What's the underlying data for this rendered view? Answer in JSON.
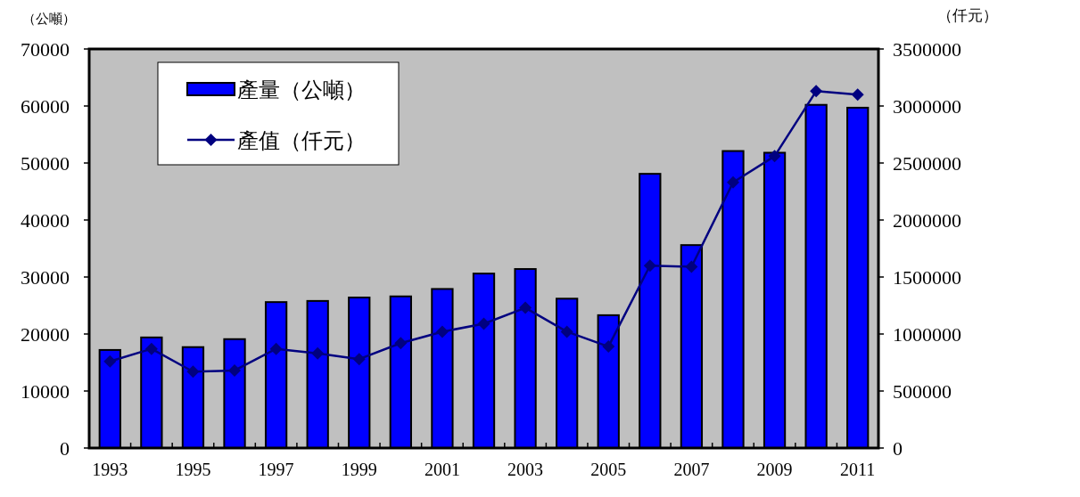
{
  "chart_data": {
    "type": "bar",
    "ylabel": "（公噸）",
    "y2label": "（仟元）",
    "categories": [
      "1993",
      null,
      "1995",
      null,
      "1997",
      null,
      "1999",
      null,
      "2001",
      null,
      "2003",
      null,
      "2005",
      null,
      "2007",
      null,
      "2009",
      null,
      "2011"
    ],
    "series": [
      {
        "name": "產量（公噸）",
        "color": "#0000ff",
        "values": [
          17200,
          19400,
          17700,
          19100,
          25600,
          25800,
          26400,
          26600,
          27900,
          30600,
          31400,
          26200,
          23300,
          48100,
          35600,
          52100,
          51800,
          60200,
          59700
        ]
      },
      {
        "name": "產值（仟元）",
        "type": "line",
        "axis": "y2",
        "color": "#000080",
        "marker": "diamond",
        "values": [
          760000,
          870000,
          670000,
          680000,
          870000,
          830000,
          780000,
          920000,
          1020000,
          1090000,
          1230000,
          1020000,
          890000,
          1600000,
          1590000,
          2330000,
          2560000,
          3130000,
          3100000
        ]
      }
    ],
    "ylim": [
      0,
      70000
    ],
    "yticks": [
      0,
      10000,
      20000,
      30000,
      40000,
      50000,
      60000,
      70000
    ],
    "y2lim": [
      0,
      3500000
    ],
    "y2ticks": [
      0,
      500000,
      1000000,
      1500000,
      2000000,
      2500000,
      3000000,
      3500000
    ],
    "grid": false,
    "legend": "top left"
  }
}
